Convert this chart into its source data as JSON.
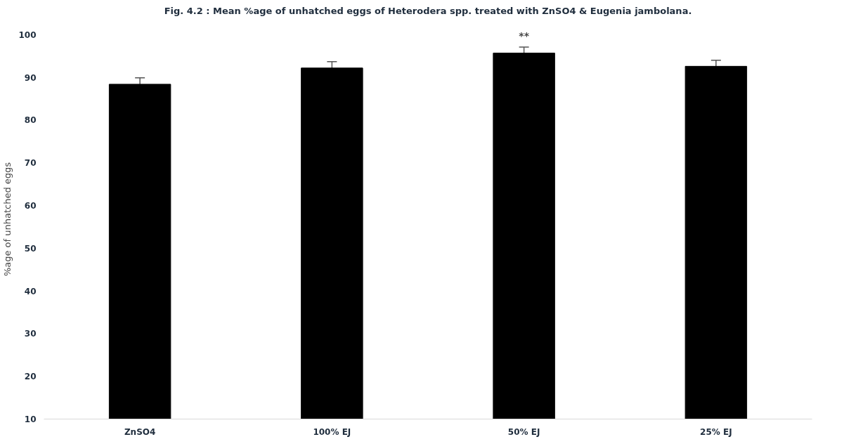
{
  "chart_data": {
    "type": "bar",
    "title": "Fig. 4.2 : Mean %age of unhatched eggs of Heterodera spp. treated with ZnSO4 & Eugenia jambolana.",
    "ylabel": "%age of unhatched eggs",
    "categories": [
      "ZnSO4",
      "100% EJ",
      "50% EJ",
      "25% EJ"
    ],
    "values": [
      88.4,
      92.2,
      95.7,
      92.6
    ],
    "errors": [
      1.5,
      1.5,
      1.4,
      1.4
    ],
    "color": "#000000",
    "ylim": [
      10,
      100
    ],
    "yticks": [
      10,
      20,
      30,
      40,
      50,
      60,
      70,
      80,
      90,
      100
    ],
    "grid": false,
    "annotations": [
      "**"
    ]
  }
}
